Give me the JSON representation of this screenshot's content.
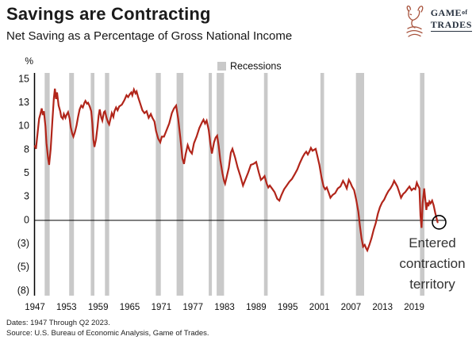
{
  "header": {
    "title": "Savings are Contracting",
    "subtitle": "Net Saving as a Percentage of Gross National Income"
  },
  "logo": {
    "game": "Game",
    "of": "of",
    "trades": "Trades"
  },
  "footer": {
    "dates": "Dates: 1947 Through Q2 2023.",
    "source": "Source: U.S. Bureau of Economic Analysis, Game of Trades."
  },
  "colors": {
    "line": "#b1251a",
    "recession": "#c9c9c9",
    "axis": "#000000",
    "annotation": "#333333",
    "logo_icon": "#a8543e",
    "logo_text": "#27313f"
  },
  "chart_data": {
    "type": "line",
    "title": "Net Saving as a Percentage of Gross National Income",
    "unit_label": "%",
    "legend": {
      "label": "Recessions",
      "swatch": "gray-square"
    },
    "x_range": [
      1947,
      2024.5
    ],
    "y_range": [
      -7.5,
      15
    ],
    "grid": "off",
    "x_ticks": [
      {
        "v": 1947,
        "label": "1947"
      },
      {
        "v": 1953,
        "label": "1953"
      },
      {
        "v": 1959,
        "label": "1959"
      },
      {
        "v": 1965,
        "label": "1965"
      },
      {
        "v": 1971,
        "label": "1971"
      },
      {
        "v": 1977,
        "label": "1977"
      },
      {
        "v": 1983,
        "label": "1983"
      },
      {
        "v": 1989,
        "label": "1989"
      },
      {
        "v": 1995,
        "label": "1995"
      },
      {
        "v": 2001,
        "label": "2001"
      },
      {
        "v": 2007,
        "label": "2007"
      },
      {
        "v": 2013,
        "label": "2013"
      },
      {
        "v": 2019,
        "label": "2019"
      }
    ],
    "y_ticks": [
      {
        "v": 15,
        "label": "15"
      },
      {
        "v": 12.5,
        "label": "13"
      },
      {
        "v": 10,
        "label": "10"
      },
      {
        "v": 7.5,
        "label": "8"
      },
      {
        "v": 5,
        "label": "5"
      },
      {
        "v": 2.5,
        "label": "3"
      },
      {
        "v": 0,
        "label": "0"
      },
      {
        "v": -2.5,
        "label": "(3)"
      },
      {
        "v": -5,
        "label": "(5)"
      },
      {
        "v": -7.5,
        "label": "(8)"
      }
    ],
    "recessions": [
      [
        1948.85,
        1949.8
      ],
      [
        1953.5,
        1954.4
      ],
      [
        1957.6,
        1958.3
      ],
      [
        1960.3,
        1961.1
      ],
      [
        1969.95,
        1970.9
      ],
      [
        1973.9,
        1975.2
      ],
      [
        1980.0,
        1980.6
      ],
      [
        1981.5,
        1982.9
      ],
      [
        1990.5,
        1991.2
      ],
      [
        2001.2,
        2001.9
      ],
      [
        2007.95,
        2009.5
      ],
      [
        2020.1,
        2020.95
      ]
    ],
    "annotation": {
      "lines": [
        "Entered",
        "contraction",
        "territory"
      ],
      "x": 2023.5,
      "y": -0.2
    },
    "end_marker": {
      "x": 2023.5,
      "y": -0.2
    },
    "series": [
      {
        "name": "Net saving (% of Gross National Income)",
        "points": [
          [
            1947.0,
            7.9
          ],
          [
            1947.2,
            7.6
          ],
          [
            1947.5,
            9.2
          ],
          [
            1947.8,
            10.8
          ],
          [
            1948.0,
            11.2
          ],
          [
            1948.3,
            11.9
          ],
          [
            1948.5,
            11.2
          ],
          [
            1948.7,
            11.6
          ],
          [
            1949.0,
            10.0
          ],
          [
            1949.2,
            8.2
          ],
          [
            1949.5,
            6.6
          ],
          [
            1949.7,
            5.9
          ],
          [
            1950.0,
            7.6
          ],
          [
            1950.3,
            10.4
          ],
          [
            1950.6,
            13.0
          ],
          [
            1950.8,
            14.0
          ],
          [
            1951.0,
            12.9
          ],
          [
            1951.2,
            13.6
          ],
          [
            1951.5,
            12.2
          ],
          [
            1951.8,
            11.6
          ],
          [
            1952.0,
            11.0
          ],
          [
            1952.3,
            10.8
          ],
          [
            1952.5,
            11.3
          ],
          [
            1952.8,
            10.9
          ],
          [
            1953.0,
            11.2
          ],
          [
            1953.3,
            11.5
          ],
          [
            1953.6,
            10.8
          ],
          [
            1953.8,
            9.9
          ],
          [
            1954.1,
            9.2
          ],
          [
            1954.3,
            8.9
          ],
          [
            1954.6,
            9.4
          ],
          [
            1954.9,
            10.1
          ],
          [
            1955.2,
            11.0
          ],
          [
            1955.5,
            11.8
          ],
          [
            1955.8,
            12.2
          ],
          [
            1956.1,
            12.0
          ],
          [
            1956.4,
            12.5
          ],
          [
            1956.6,
            12.7
          ],
          [
            1956.9,
            12.4
          ],
          [
            1957.1,
            12.5
          ],
          [
            1957.4,
            12.1
          ],
          [
            1957.7,
            11.6
          ],
          [
            1957.9,
            10.3
          ],
          [
            1958.1,
            8.6
          ],
          [
            1958.3,
            7.8
          ],
          [
            1958.6,
            8.6
          ],
          [
            1958.9,
            10.0
          ],
          [
            1959.1,
            11.1
          ],
          [
            1959.3,
            11.8
          ],
          [
            1959.6,
            10.9
          ],
          [
            1959.8,
            10.6
          ],
          [
            1960.1,
            11.5
          ],
          [
            1960.3,
            11.6
          ],
          [
            1960.6,
            10.9
          ],
          [
            1960.9,
            10.4
          ],
          [
            1961.1,
            10.2
          ],
          [
            1961.4,
            10.9
          ],
          [
            1961.6,
            11.4
          ],
          [
            1961.9,
            11.0
          ],
          [
            1962.1,
            11.6
          ],
          [
            1962.4,
            12.0
          ],
          [
            1962.7,
            11.7
          ],
          [
            1963.0,
            12.1
          ],
          [
            1963.5,
            12.3
          ],
          [
            1964.0,
            12.8
          ],
          [
            1964.4,
            13.3
          ],
          [
            1964.7,
            13.1
          ],
          [
            1965.0,
            13.4
          ],
          [
            1965.3,
            13.6
          ],
          [
            1965.5,
            13.3
          ],
          [
            1965.8,
            13.9
          ],
          [
            1966.1,
            13.5
          ],
          [
            1966.3,
            13.7
          ],
          [
            1966.6,
            13.1
          ],
          [
            1967.0,
            12.4
          ],
          [
            1967.4,
            11.7
          ],
          [
            1967.8,
            11.4
          ],
          [
            1968.2,
            11.6
          ],
          [
            1968.6,
            10.9
          ],
          [
            1969.0,
            11.3
          ],
          [
            1969.3,
            10.9
          ],
          [
            1969.7,
            10.5
          ],
          [
            1970.0,
            9.5
          ],
          [
            1970.4,
            8.7
          ],
          [
            1970.8,
            8.3
          ],
          [
            1971.1,
            8.9
          ],
          [
            1971.5,
            8.9
          ],
          [
            1972.0,
            9.6
          ],
          [
            1972.5,
            10.3
          ],
          [
            1973.0,
            11.4
          ],
          [
            1973.4,
            11.9
          ],
          [
            1973.8,
            12.2
          ],
          [
            1974.2,
            10.8
          ],
          [
            1974.6,
            8.8
          ],
          [
            1975.0,
            6.6
          ],
          [
            1975.3,
            6.0
          ],
          [
            1975.6,
            7.0
          ],
          [
            1976.0,
            8.0
          ],
          [
            1976.4,
            7.4
          ],
          [
            1976.8,
            7.1
          ],
          [
            1977.2,
            8.2
          ],
          [
            1977.7,
            8.9
          ],
          [
            1978.2,
            9.8
          ],
          [
            1978.7,
            10.4
          ],
          [
            1979.0,
            10.7
          ],
          [
            1979.3,
            10.3
          ],
          [
            1979.6,
            10.6
          ],
          [
            1980.0,
            9.6
          ],
          [
            1980.3,
            8.2
          ],
          [
            1980.6,
            7.1
          ],
          [
            1981.0,
            8.3
          ],
          [
            1981.3,
            8.8
          ],
          [
            1981.6,
            9.0
          ],
          [
            1981.9,
            7.9
          ],
          [
            1982.2,
            6.4
          ],
          [
            1982.6,
            5.0
          ],
          [
            1982.9,
            4.2
          ],
          [
            1983.1,
            3.9
          ],
          [
            1983.4,
            4.6
          ],
          [
            1983.8,
            5.6
          ],
          [
            1984.2,
            7.2
          ],
          [
            1984.5,
            7.6
          ],
          [
            1985.0,
            6.7
          ],
          [
            1985.5,
            5.6
          ],
          [
            1986.0,
            4.7
          ],
          [
            1986.5,
            3.7
          ],
          [
            1987.0,
            4.4
          ],
          [
            1987.5,
            5.1
          ],
          [
            1988.0,
            5.9
          ],
          [
            1988.5,
            6.0
          ],
          [
            1989.0,
            6.2
          ],
          [
            1989.5,
            5.1
          ],
          [
            1989.9,
            4.3
          ],
          [
            1990.3,
            4.5
          ],
          [
            1990.6,
            4.7
          ],
          [
            1991.0,
            3.9
          ],
          [
            1991.3,
            3.5
          ],
          [
            1991.6,
            3.7
          ],
          [
            1992.0,
            3.4
          ],
          [
            1992.5,
            3.0
          ],
          [
            1993.0,
            2.3
          ],
          [
            1993.4,
            2.1
          ],
          [
            1993.8,
            2.7
          ],
          [
            1994.3,
            3.3
          ],
          [
            1994.8,
            3.7
          ],
          [
            1995.3,
            4.1
          ],
          [
            1995.8,
            4.4
          ],
          [
            1996.3,
            4.9
          ],
          [
            1996.8,
            5.4
          ],
          [
            1997.3,
            6.1
          ],
          [
            1997.8,
            6.7
          ],
          [
            1998.2,
            7.1
          ],
          [
            1998.5,
            7.3
          ],
          [
            1998.8,
            7.0
          ],
          [
            1999.1,
            7.3
          ],
          [
            1999.4,
            7.7
          ],
          [
            1999.7,
            7.4
          ],
          [
            2000.0,
            7.5
          ],
          [
            2000.3,
            7.6
          ],
          [
            2000.6,
            6.9
          ],
          [
            2001.0,
            5.9
          ],
          [
            2001.4,
            4.6
          ],
          [
            2001.8,
            3.6
          ],
          [
            2002.1,
            3.3
          ],
          [
            2002.4,
            3.5
          ],
          [
            2002.8,
            2.9
          ],
          [
            2003.1,
            2.4
          ],
          [
            2003.5,
            2.7
          ],
          [
            2004.0,
            2.9
          ],
          [
            2004.5,
            3.4
          ],
          [
            2005.0,
            3.6
          ],
          [
            2005.5,
            4.2
          ],
          [
            2005.8,
            3.9
          ],
          [
            2006.2,
            3.4
          ],
          [
            2006.6,
            4.3
          ],
          [
            2006.9,
            4.0
          ],
          [
            2007.2,
            3.6
          ],
          [
            2007.6,
            3.2
          ],
          [
            2008.0,
            2.2
          ],
          [
            2008.4,
            0.9
          ],
          [
            2008.7,
            -0.6
          ],
          [
            2009.0,
            -1.9
          ],
          [
            2009.3,
            -2.8
          ],
          [
            2009.6,
            -2.6
          ],
          [
            2009.9,
            -3.0
          ],
          [
            2010.1,
            -3.2
          ],
          [
            2010.5,
            -2.6
          ],
          [
            2010.9,
            -1.9
          ],
          [
            2011.3,
            -1.0
          ],
          [
            2011.7,
            -0.3
          ],
          [
            2012.1,
            0.7
          ],
          [
            2012.5,
            1.4
          ],
          [
            2012.9,
            1.9
          ],
          [
            2013.3,
            2.2
          ],
          [
            2013.7,
            2.7
          ],
          [
            2014.1,
            3.1
          ],
          [
            2014.5,
            3.4
          ],
          [
            2014.9,
            3.8
          ],
          [
            2015.2,
            4.2
          ],
          [
            2015.5,
            3.9
          ],
          [
            2015.8,
            3.6
          ],
          [
            2016.1,
            3.1
          ],
          [
            2016.5,
            2.4
          ],
          [
            2016.9,
            2.8
          ],
          [
            2017.3,
            3.0
          ],
          [
            2017.7,
            3.3
          ],
          [
            2018.1,
            3.6
          ],
          [
            2018.5,
            3.2
          ],
          [
            2018.9,
            3.4
          ],
          [
            2019.2,
            3.3
          ],
          [
            2019.5,
            4.0
          ],
          [
            2019.8,
            3.6
          ],
          [
            2020.0,
            3.4
          ],
          [
            2020.2,
            0.5
          ],
          [
            2020.4,
            -0.8
          ],
          [
            2020.6,
            1.8
          ],
          [
            2020.9,
            3.4
          ],
          [
            2021.1,
            2.3
          ],
          [
            2021.3,
            1.1
          ],
          [
            2021.5,
            1.9
          ],
          [
            2021.7,
            1.5
          ],
          [
            2021.9,
            2.0
          ],
          [
            2022.1,
            1.8
          ],
          [
            2022.4,
            2.1
          ],
          [
            2022.7,
            1.6
          ],
          [
            2023.0,
            0.8
          ],
          [
            2023.45,
            -0.2
          ]
        ]
      }
    ]
  }
}
